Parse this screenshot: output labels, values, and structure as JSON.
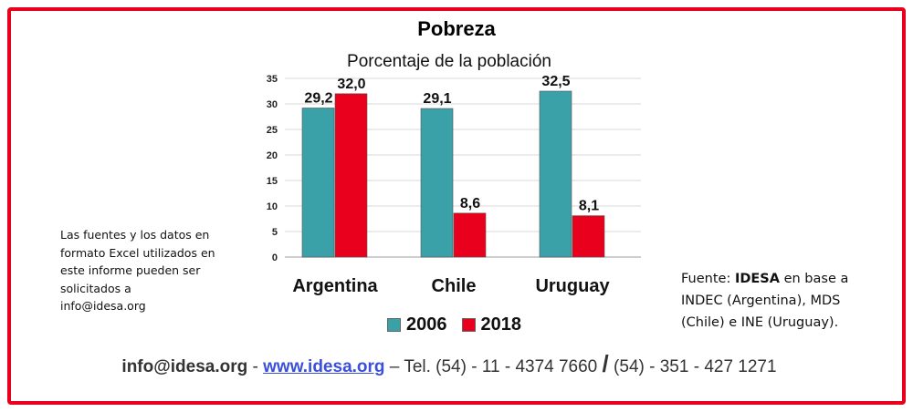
{
  "title": "Pobreza",
  "subtitle": "Porcentaje de la población",
  "chart_data": {
    "type": "bar",
    "title": "Pobreza",
    "subtitle": "Porcentaje de la población",
    "categories": [
      "Argentina",
      "Chile",
      "Uruguay"
    ],
    "series": [
      {
        "name": "2006",
        "values": [
          29.2,
          29.1,
          32.5
        ],
        "labels": [
          "29,2",
          "29,1",
          "32,5"
        ],
        "color": "#3aa1a8"
      },
      {
        "name": "2018",
        "values": [
          32.0,
          8.6,
          8.1
        ],
        "labels": [
          "32,0",
          "8,6",
          "8,1"
        ],
        "color": "#e8001c"
      }
    ],
    "ylim": [
      0,
      35
    ],
    "yticks": [
      "0",
      "5",
      "10",
      "15",
      "20",
      "25",
      "30",
      "35"
    ],
    "grid": true,
    "legend_position": "bottom",
    "xlabel": "",
    "ylabel": ""
  },
  "side_note": "Las fuentes y los datos en formato Excel utilizados en este informe pueden ser solicitados a info@idesa.org",
  "source": {
    "prefix": "Fuente: ",
    "brand": "IDESA",
    "rest": " en base a INDEC (Argentina), MDS (Chile) e INE (Uruguay)."
  },
  "footer": {
    "email": "info@idesa.org",
    "sep1": " - ",
    "web": "www.idesa.org",
    "tel": " – Tel. (54) - 11 - 4374 7660 ",
    "slash": "/",
    "tel2": " (54) - 351 - 427 1271"
  }
}
